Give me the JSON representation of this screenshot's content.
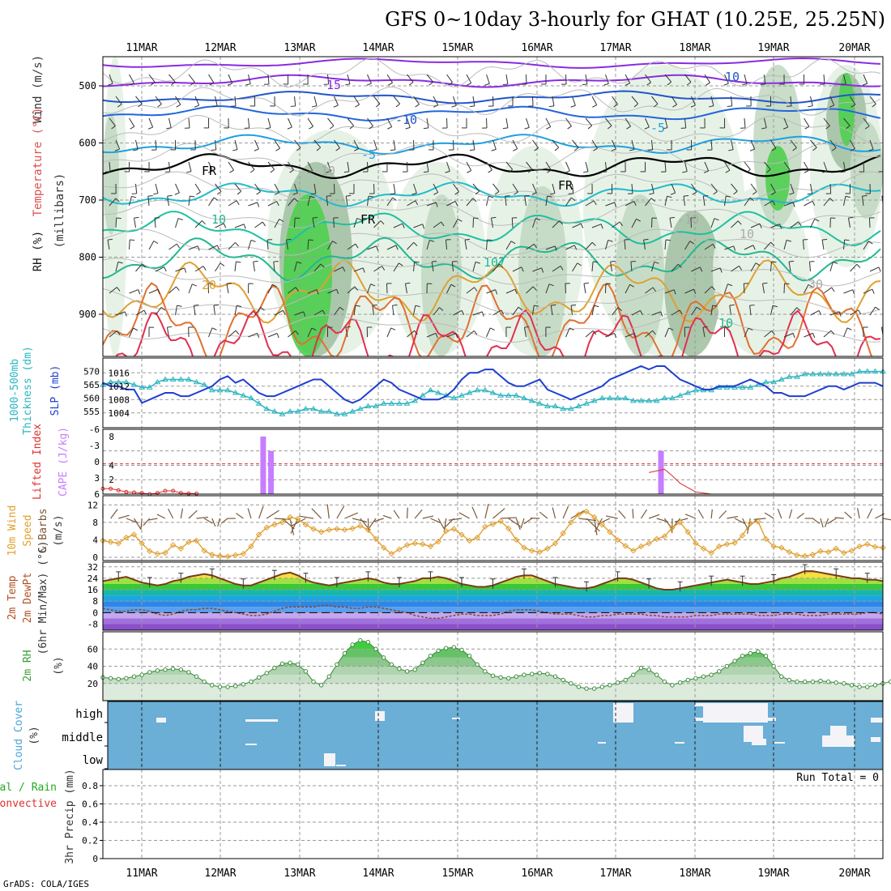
{
  "title": "GFS 0~10day 3-hourly for GHAT (10.25E, 25.25N)",
  "footer": "GrADS: COLA/IGES",
  "dates": [
    "11MAR",
    "12MAR",
    "13MAR",
    "14MAR",
    "15MAR",
    "16MAR",
    "17MAR",
    "18MAR",
    "19MAR",
    "20MAR"
  ],
  "colors": {
    "temp_contour": "#1a7fd4",
    "purple_contour": "#8a2be2",
    "rh_green": "#33cc33",
    "slp": "#1f3fcf",
    "thickness": "#2bb5c0",
    "cape": "#c77dff",
    "lifted_index": "#e03030",
    "wind_speed": "#e0a030",
    "barbs": "#7a5a3a",
    "rh2m": "#5aa25a",
    "cloud": "#6baed6",
    "grid": "#9a9a9a"
  },
  "panels": {
    "upper": {
      "ylabels": [
        "Wind (m/s)",
        "Temperature (°C)",
        "RH (%)",
        "(millibars)"
      ],
      "pressure_ticks": [
        "500",
        "600",
        "700",
        "800",
        "900"
      ],
      "contour_labels": [
        "15",
        "10",
        "-10",
        "-5",
        "-5",
        "FR",
        "FR",
        "FR",
        "10",
        "107",
        "20",
        "10",
        "10",
        "30",
        "10",
        "-10"
      ]
    },
    "slp": {
      "ylabels": [
        "1000-500mb",
        "Thickness (dm)",
        "SLP (mb)"
      ],
      "left_ticks": [
        "570",
        "565",
        "560",
        "555"
      ],
      "right_ticks": [
        "1016",
        "1012",
        "1008",
        "1004"
      ]
    },
    "cape": {
      "ylabels": [
        "Lifted Index",
        "CAPE (J/kg)"
      ],
      "left_ticks": [
        "-6",
        "-3",
        "0",
        "3",
        "6"
      ],
      "right_ticks": [
        "8",
        "4",
        "2"
      ]
    },
    "wind10": {
      "ylabels": [
        "10m Wind",
        "Speed",
        "(m/s)",
        "& Barbs"
      ],
      "ticks": [
        "12",
        "8",
        "4",
        "0"
      ]
    },
    "temp2m": {
      "ylabels": [
        "2m Temp",
        "2m DewPt",
        "(6hr Min/Max) (°C)"
      ],
      "ticks": [
        "32",
        "24",
        "16",
        "8",
        "0",
        "-8"
      ]
    },
    "rh2m": {
      "ylabels": [
        "2m RH",
        "(%)"
      ],
      "ticks": [
        "60",
        "40",
        "20"
      ]
    },
    "cloud": {
      "ylabels": [
        "Cloud Cover",
        "(%)"
      ],
      "levels": [
        "high",
        "middle",
        "low"
      ]
    },
    "precip": {
      "ylabels": [
        "Total / Rain",
        "Convective",
        "3hr Precip (mm)"
      ],
      "ticks": [
        "0.8",
        "0.6",
        "0.4",
        "0.2",
        "0"
      ],
      "run_total": "Run Total = 0"
    }
  },
  "chart_data": [
    {
      "type": "line",
      "title": "1000-500mb Thickness (dm) / SLP (mb)",
      "series": [
        {
          "name": "SLP (mb)",
          "values": [
            1013,
            1012,
            1012,
            1011,
            1011,
            1007,
            1008,
            1009,
            1010,
            1010,
            1009,
            1009,
            1010,
            1011,
            1012,
            1014,
            1015,
            1013,
            1014,
            1012,
            1010,
            1009,
            1009,
            1010,
            1011,
            1012,
            1013,
            1014,
            1014,
            1012,
            1010,
            1008,
            1007,
            1008,
            1010,
            1012,
            1014,
            1013,
            1011,
            1010,
            1009,
            1008,
            1008,
            1008,
            1009,
            1011,
            1014,
            1016,
            1016,
            1017,
            1017,
            1015,
            1013,
            1012,
            1012,
            1013,
            1014,
            1011,
            1010,
            1009,
            1008,
            1009,
            1010,
            1011,
            1012,
            1014,
            1015,
            1016,
            1017,
            1018,
            1017,
            1018,
            1018,
            1016,
            1014,
            1013,
            1012,
            1011,
            1011,
            1012,
            1012,
            1012,
            1013,
            1014,
            1013,
            1012,
            1010,
            1010,
            1009,
            1009,
            1009,
            1010,
            1011,
            1012,
            1012,
            1011,
            1012,
            1013,
            1013,
            1013,
            1012
          ]
        },
        {
          "name": "Thickness (dm)",
          "values": [
            565,
            566,
            566,
            566,
            565,
            564,
            564,
            566,
            567,
            567,
            567,
            567,
            566,
            565,
            563,
            563,
            563,
            562,
            561,
            560,
            558,
            556,
            555,
            554,
            555,
            555,
            556,
            556,
            555,
            555,
            554,
            554,
            555,
            556,
            557,
            557,
            558,
            558,
            558,
            558,
            559,
            561,
            563,
            562,
            561,
            560,
            561,
            562,
            563,
            563,
            562,
            561,
            561,
            561,
            560,
            559,
            558,
            557,
            557,
            556,
            556,
            557,
            558,
            559,
            560,
            560,
            560,
            560,
            559,
            559,
            559,
            559,
            560,
            560,
            561,
            562,
            563,
            563,
            563,
            564,
            564,
            564,
            564,
            564,
            565,
            566,
            566,
            567,
            568,
            568,
            569,
            569,
            569,
            569,
            569,
            569,
            569,
            570,
            570,
            570,
            570
          ]
        }
      ]
    },
    {
      "type": "bar",
      "title": "CAPE (J/kg)",
      "bars": [
        {
          "x": 20.5,
          "value": 8
        },
        {
          "x": 21.5,
          "value": 6
        },
        {
          "x": 71.5,
          "value": 6
        }
      ],
      "series": [
        {
          "name": "Lifted Index",
          "values": [
            5.0,
            5.0,
            5.3,
            5.6,
            5.7,
            5.8,
            6.0,
            5.8,
            5.4,
            5.4,
            5.8,
            5.9,
            5.9,
            5.9,
            5.9,
            6.0,
            6.0,
            5.7,
            5.6,
            5.7,
            6.0,
            6.0,
            6.0
          ]
        }
      ]
    },
    {
      "type": "line",
      "title": "10m Wind Speed (m/s)",
      "series": [
        {
          "name": "10m Wind Speed",
          "values": [
            3.8,
            3.5,
            3.2,
            4.5,
            5.2,
            3.2,
            1.4,
            0.8,
            1.0,
            2.8,
            2.0,
            3.5,
            3.8,
            1.5,
            0.6,
            0.3,
            0.2,
            0.5,
            0.8,
            2.5,
            5.2,
            6.8,
            7.5,
            8.0,
            9.2,
            8.8,
            7.5,
            6.5,
            5.8,
            6.3,
            6.5,
            6.3,
            6.6,
            7.2,
            6.3,
            4.2,
            2.2,
            0.8,
            1.8,
            2.8,
            3.2,
            3.0,
            2.5,
            3.6,
            6.0,
            6.5,
            5.2,
            3.8,
            4.5,
            7.0,
            7.6,
            8.3,
            6.6,
            4.0,
            2.2,
            1.5,
            1.2,
            2.0,
            3.2,
            5.5,
            8.0,
            9.8,
            10.5,
            9.2,
            7.5,
            5.8,
            4.0,
            2.6,
            1.5,
            2.5,
            3.2,
            4.2,
            4.8,
            6.8,
            8.0,
            5.8,
            3.2,
            2.0,
            1.0,
            2.5,
            3.0,
            3.3,
            5.0,
            7.8,
            8.2,
            4.2,
            2.5,
            2.2,
            1.2,
            0.5,
            0.3,
            0.6,
            1.4,
            1.2,
            2.0,
            1.0,
            1.5,
            2.5,
            3.0,
            2.4,
            2.2
          ]
        }
      ]
    },
    {
      "type": "line",
      "title": "2m Temp / 2m DewPt (°C)",
      "series": [
        {
          "name": "2m Temp",
          "values": [
            22,
            23,
            24,
            25,
            23,
            21,
            20,
            19,
            20,
            22,
            23,
            25,
            26,
            27,
            26,
            24,
            22,
            20,
            19,
            19,
            21,
            23,
            25,
            27,
            28,
            26,
            23,
            21,
            20,
            19,
            20,
            21,
            22,
            23,
            24,
            23,
            21,
            20,
            20,
            21,
            22,
            24,
            24,
            25,
            24,
            22,
            20,
            19,
            18,
            18,
            19,
            21,
            23,
            25,
            26,
            26,
            24,
            22,
            20,
            19,
            18,
            17,
            17,
            18,
            20,
            22,
            24,
            24,
            23,
            21,
            19,
            17,
            16,
            16,
            17,
            18,
            19,
            20,
            21,
            22,
            23,
            22,
            21,
            20,
            20,
            21,
            22,
            24,
            25,
            27,
            29,
            29,
            28,
            27,
            26,
            25,
            24,
            24,
            23,
            23,
            22
          ]
        },
        {
          "name": "2m DewPt",
          "values": [
            3,
            2,
            1,
            1,
            2,
            2,
            1,
            -1,
            -2,
            -1,
            1,
            2,
            2,
            3,
            3,
            2,
            1,
            0,
            -1,
            -2,
            -2,
            -1,
            1,
            3,
            4,
            4,
            4,
            4,
            5,
            5,
            4,
            4,
            3,
            3,
            4,
            4,
            3,
            2,
            1,
            0,
            -2,
            -3,
            -4,
            -4,
            -3,
            -2,
            -1,
            -1,
            -2,
            -2,
            -2,
            -1,
            1,
            2,
            2,
            2,
            1,
            0,
            -1,
            -1,
            -1,
            -2,
            -3,
            -3,
            -2,
            -2,
            -1,
            -1,
            -1,
            -1,
            -2,
            -2,
            -3,
            -3,
            -3,
            -3,
            -2,
            -2,
            -2,
            -1,
            -1,
            -1,
            -1,
            -1,
            -2,
            -2,
            -2,
            -1,
            -1,
            -1,
            -2,
            -2,
            -2,
            -1,
            -1,
            -1,
            -1,
            -1,
            0,
            0,
            -1
          ]
        }
      ]
    },
    {
      "type": "area",
      "title": "2m RH (%)",
      "series": [
        {
          "name": "2m RH",
          "values": [
            27,
            26,
            25,
            26,
            28,
            30,
            33,
            35,
            36,
            37,
            36,
            33,
            28,
            22,
            18,
            16,
            16,
            17,
            19,
            22,
            27,
            32,
            38,
            43,
            44,
            42,
            34,
            22,
            18,
            28,
            42,
            55,
            65,
            70,
            68,
            60,
            50,
            42,
            37,
            34,
            36,
            44,
            52,
            58,
            61,
            62,
            59,
            52,
            42,
            34,
            29,
            27,
            26,
            28,
            30,
            31,
            32,
            31,
            28,
            24,
            20,
            16,
            14,
            14,
            16,
            18,
            21,
            24,
            30,
            38,
            36,
            30,
            22,
            18,
            21,
            24,
            26,
            28,
            30,
            34,
            40,
            46,
            52,
            55,
            57,
            52,
            40,
            28,
            24,
            22,
            22,
            22,
            23,
            22,
            21,
            20,
            18,
            16,
            16,
            18,
            20,
            22
          ]
        }
      ]
    }
  ]
}
